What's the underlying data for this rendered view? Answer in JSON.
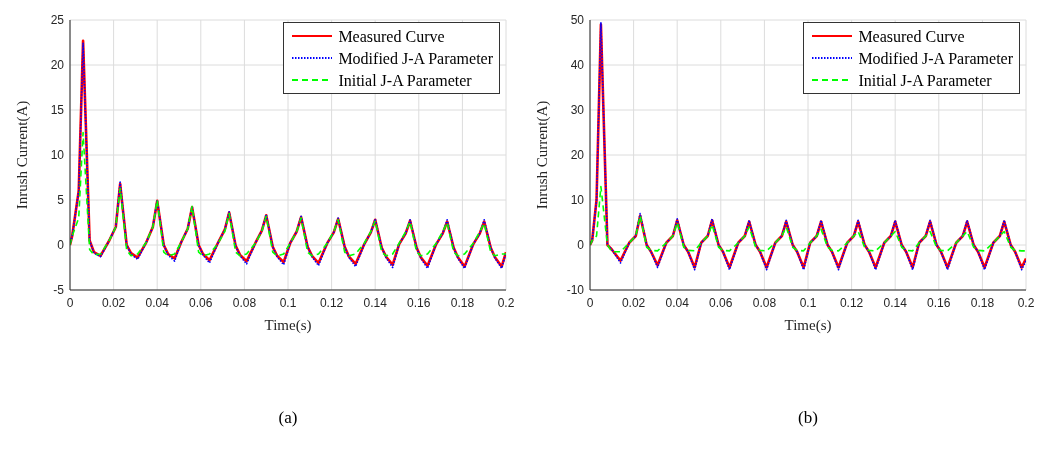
{
  "chart_data": [
    {
      "type": "line",
      "xlabel": "Time(s)",
      "ylabel": "Inrush Current(A)",
      "annotations": [
        "(a)"
      ],
      "xlim": [
        0,
        0.2
      ],
      "xticks": [
        0,
        0.02,
        0.04,
        0.06,
        0.08,
        0.1,
        0.12,
        0.14,
        0.16,
        0.18,
        0.2
      ],
      "ylim": [
        -5,
        25
      ],
      "yticks": [
        -5,
        0,
        5,
        10,
        15,
        20,
        25
      ],
      "grid": true,
      "legend": "top right",
      "marker": "none",
      "x": [
        0,
        0.001,
        0.004,
        0.006,
        0.009,
        0.011,
        0.014,
        0.018,
        0.021,
        0.023,
        0.026,
        0.028,
        0.031,
        0.035,
        0.038,
        0.04,
        0.043,
        0.045,
        0.048,
        0.051,
        0.054,
        0.056,
        0.059,
        0.061,
        0.064,
        0.068,
        0.071,
        0.073,
        0.076,
        0.078,
        0.081,
        0.085,
        0.088,
        0.09,
        0.093,
        0.095,
        0.098,
        0.101,
        0.104,
        0.106,
        0.109,
        0.111,
        0.114,
        0.118,
        0.121,
        0.123,
        0.126,
        0.128,
        0.131,
        0.135,
        0.138,
        0.14,
        0.143,
        0.145,
        0.148,
        0.151,
        0.154,
        0.156,
        0.159,
        0.161,
        0.164,
        0.168,
        0.171,
        0.173,
        0.176,
        0.178,
        0.181,
        0.185,
        0.188,
        0.19,
        0.193,
        0.195,
        0.198,
        0.2
      ],
      "series": [
        {
          "name": "Measured Curve",
          "color": "#ff0000",
          "line_style": "solid",
          "values": [
            0,
            1,
            6,
            22.7,
            0.5,
            -0.8,
            -1.2,
            0.5,
            2,
            6.8,
            0,
            -0.9,
            -1.4,
            0.3,
            2,
            4.9,
            0,
            -1.0,
            -1.5,
            0.3,
            1.8,
            4.2,
            0,
            -1.0,
            -1.7,
            0.3,
            1.7,
            3.6,
            -0.1,
            -1.1,
            -1.8,
            0.2,
            1.6,
            3.3,
            -0.2,
            -1.2,
            -1.9,
            0.2,
            1.5,
            3.1,
            -0.2,
            -1.2,
            -2.0,
            0.2,
            1.4,
            2.9,
            -0.2,
            -1.3,
            -2.1,
            0.1,
            1.4,
            2.8,
            -0.3,
            -1.3,
            -2.2,
            0.1,
            1.3,
            2.7,
            -0.3,
            -1.4,
            -2.3,
            0.1,
            1.3,
            2.6,
            -0.3,
            -1.4,
            -2.4,
            0.1,
            1.3,
            2.6,
            -0.3,
            -1.4,
            -2.4,
            -0.8
          ]
        },
        {
          "name": "Modified J-A Parameter",
          "color": "#0000ff",
          "line_style": "dotted",
          "values": [
            0,
            1,
            6,
            22.4,
            0.5,
            -0.9,
            -1.3,
            0.5,
            2,
            7.0,
            0,
            -1.0,
            -1.6,
            0.3,
            2,
            5.0,
            0,
            -1.1,
            -1.8,
            0.3,
            1.8,
            4.3,
            0,
            -1.1,
            -2.0,
            0.3,
            1.7,
            3.7,
            -0.1,
            -1.2,
            -2.1,
            0.2,
            1.6,
            3.4,
            -0.2,
            -1.3,
            -2.2,
            0.2,
            1.5,
            3.2,
            -0.2,
            -1.3,
            -2.3,
            0.2,
            1.4,
            3.0,
            -0.2,
            -1.4,
            -2.4,
            0.1,
            1.4,
            2.9,
            -0.3,
            -1.4,
            -2.5,
            0.1,
            1.3,
            2.8,
            -0.3,
            -1.5,
            -2.6,
            0.1,
            1.3,
            2.8,
            -0.3,
            -1.5,
            -2.6,
            0.1,
            1.3,
            2.8,
            -0.3,
            -1.5,
            -2.6,
            -0.9
          ]
        },
        {
          "name": "Initial J-A Parameter",
          "color": "#00ff00",
          "line_style": "dashed",
          "values": [
            0,
            1,
            3,
            12.5,
            -0.5,
            -1.1,
            -1.0,
            0.5,
            2,
            6.3,
            -0.6,
            -1.2,
            -1.0,
            0.3,
            2,
            5.0,
            -0.8,
            -1.2,
            -1.0,
            0.3,
            1.8,
            4.3,
            -0.8,
            -1.2,
            -1.0,
            0.2,
            1.5,
            3.5,
            -0.8,
            -1.2,
            -1.0,
            0.2,
            1.5,
            3.2,
            -0.8,
            -1.2,
            -1.0,
            0.2,
            1.5,
            3.0,
            -0.8,
            -1.2,
            -1.0,
            0.2,
            1.5,
            2.8,
            -0.8,
            -1.2,
            -1.0,
            0.2,
            1.5,
            2.7,
            -0.8,
            -1.2,
            -1.0,
            0.2,
            1.5,
            2.6,
            -0.8,
            -1.2,
            -1.0,
            0.2,
            1.5,
            2.5,
            -0.8,
            -1.2,
            -1.0,
            0.2,
            1.5,
            2.4,
            -0.8,
            -1.2,
            -1.0,
            -1.0
          ]
        }
      ]
    },
    {
      "type": "line",
      "xlabel": "Time(s)",
      "ylabel": "Inrush Current(A)",
      "annotations": [
        "(b)"
      ],
      "xlim": [
        0,
        0.2
      ],
      "xticks": [
        0,
        0.02,
        0.04,
        0.06,
        0.08,
        0.1,
        0.12,
        0.14,
        0.16,
        0.18,
        0.2
      ],
      "ylim": [
        -10,
        50
      ],
      "yticks": [
        -10,
        0,
        10,
        20,
        30,
        40,
        50
      ],
      "grid": true,
      "legend": "top right",
      "marker": "none",
      "x": [
        0,
        0.001,
        0.003,
        0.005,
        0.008,
        0.01,
        0.014,
        0.018,
        0.021,
        0.023,
        0.026,
        0.028,
        0.031,
        0.035,
        0.038,
        0.04,
        0.043,
        0.045,
        0.048,
        0.051,
        0.054,
        0.056,
        0.059,
        0.061,
        0.064,
        0.068,
        0.071,
        0.073,
        0.076,
        0.078,
        0.081,
        0.085,
        0.088,
        0.09,
        0.093,
        0.095,
        0.098,
        0.101,
        0.104,
        0.106,
        0.109,
        0.111,
        0.114,
        0.118,
        0.121,
        0.123,
        0.126,
        0.128,
        0.131,
        0.135,
        0.138,
        0.14,
        0.143,
        0.145,
        0.148,
        0.151,
        0.154,
        0.156,
        0.159,
        0.161,
        0.164,
        0.168,
        0.171,
        0.173,
        0.176,
        0.178,
        0.181,
        0.185,
        0.188,
        0.19,
        0.193,
        0.195,
        0.198,
        0.2
      ],
      "series": [
        {
          "name": "Measured Curve",
          "color": "#ff0000",
          "line_style": "solid",
          "values": [
            0,
            1,
            10,
            49,
            0,
            -1,
            -3.5,
            0.5,
            2,
            6.5,
            0,
            -1.5,
            -4.5,
            0.5,
            2,
            5.5,
            0,
            -1.5,
            -5,
            0.5,
            2,
            5.5,
            0,
            -1.5,
            -5,
            0.5,
            2,
            5.2,
            0,
            -1.5,
            -5,
            0.5,
            2,
            5.2,
            0,
            -1.5,
            -5,
            0.5,
            2,
            5.2,
            0,
            -1.5,
            -5,
            0.5,
            2,
            5.2,
            0,
            -1.5,
            -5,
            0.5,
            2,
            5.2,
            0,
            -1.5,
            -5,
            0.5,
            2,
            5.2,
            0,
            -1.5,
            -5,
            0.5,
            2,
            5.2,
            0,
            -1.5,
            -5,
            0.5,
            2,
            5.2,
            0,
            -1.5,
            -5,
            -3
          ]
        },
        {
          "name": "Modified J-A Parameter",
          "color": "#0000ff",
          "line_style": "dotted",
          "values": [
            0,
            1,
            10,
            49.5,
            0,
            -1,
            -4,
            0.5,
            2,
            7,
            0,
            -1.5,
            -5,
            0.5,
            2,
            5.8,
            0,
            -1.5,
            -5.5,
            0.5,
            2,
            5.8,
            0,
            -1.5,
            -5.5,
            0.5,
            2,
            5.5,
            0,
            -1.5,
            -5.5,
            0.5,
            2,
            5.5,
            0,
            -1.5,
            -5.5,
            0.5,
            2,
            5.5,
            0,
            -1.5,
            -5.5,
            0.5,
            2,
            5.5,
            0,
            -1.5,
            -5.5,
            0.5,
            2,
            5.5,
            0,
            -1.5,
            -5.5,
            0.5,
            2,
            5.5,
            0,
            -1.5,
            -5.5,
            0.5,
            2,
            5.5,
            0,
            -1.5,
            -5.5,
            0.5,
            2,
            5.5,
            0,
            -1.5,
            -5.5,
            -3.5
          ]
        },
        {
          "name": "Initial J-A Parameter",
          "color": "#00ff00",
          "line_style": "dashed",
          "values": [
            0,
            1,
            2,
            13,
            0,
            -1.5,
            -1.5,
            0.5,
            2,
            6.5,
            -0.5,
            -1.2,
            -1.3,
            0.5,
            2,
            5,
            -0.5,
            -1.2,
            -1.3,
            0.5,
            2,
            4.5,
            -0.5,
            -1.2,
            -1.3,
            0.5,
            2,
            4,
            -0.5,
            -1.2,
            -1.3,
            0.5,
            2,
            4,
            -0.5,
            -1.2,
            -1.3,
            0.5,
            2,
            3.5,
            -0.5,
            -1.2,
            -1.3,
            0.5,
            2,
            3,
            -0.5,
            -1.2,
            -1.3,
            0.5,
            2,
            3,
            -0.5,
            -1.2,
            -1.3,
            0.5,
            2,
            3,
            -0.5,
            -1.2,
            -1.3,
            0.5,
            2,
            3,
            -0.5,
            -1.2,
            -1.3,
            0.5,
            2,
            3,
            -0.5,
            -1.2,
            -1.3,
            -1.3
          ]
        }
      ]
    }
  ]
}
